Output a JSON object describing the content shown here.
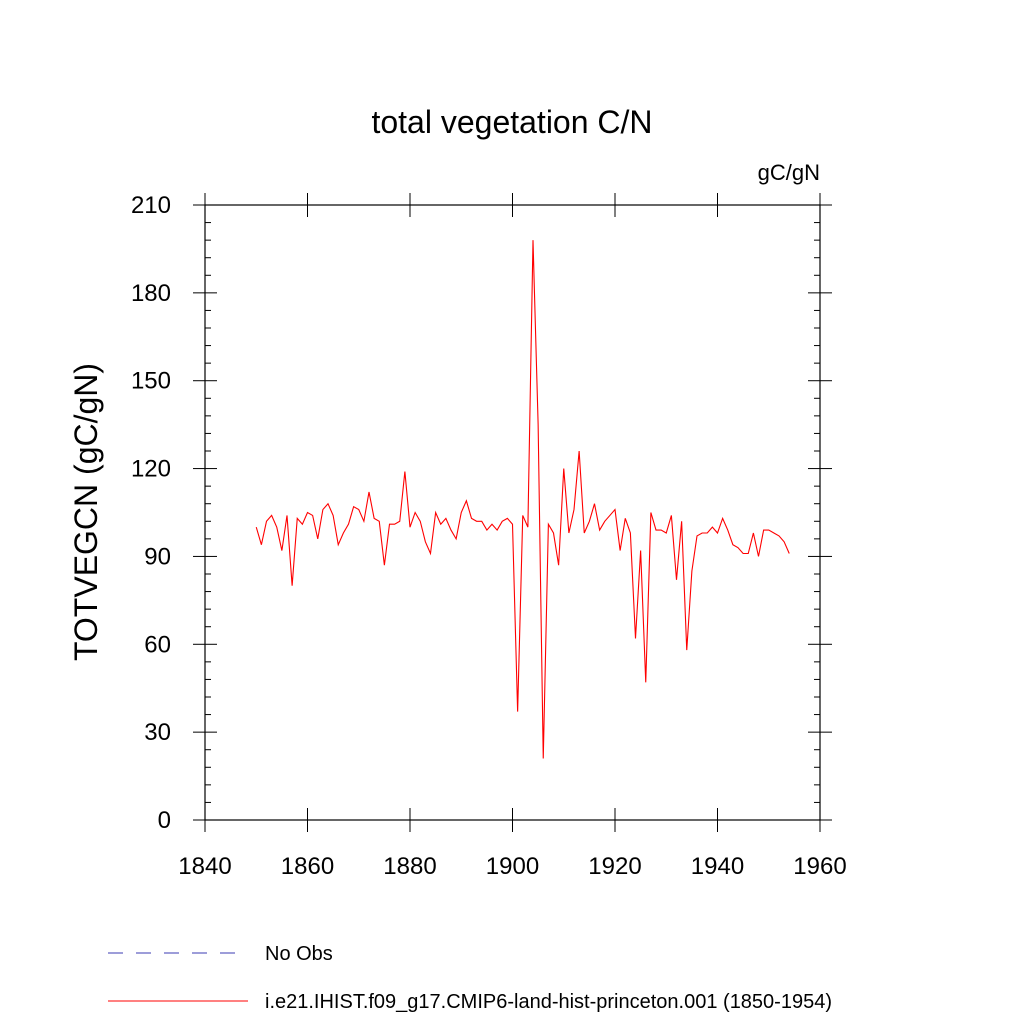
{
  "chart_data": {
    "type": "line",
    "title": "total vegetation C/N",
    "units": "gC/gN",
    "ylabel": "TOTVEGCN  (gC/gN)",
    "xlabel": "",
    "xlim": [
      1840,
      1960
    ],
    "ylim": [
      0,
      210
    ],
    "x_ticks": [
      1840,
      1860,
      1880,
      1900,
      1920,
      1940,
      1960
    ],
    "y_ticks": [
      0,
      30,
      60,
      90,
      120,
      150,
      180,
      210
    ],
    "grid": false,
    "legend_position": "bottom",
    "series": [
      {
        "name": "No Obs",
        "color": "#3b3bb3",
        "style": "dashed",
        "x": [],
        "values": []
      },
      {
        "name": "i.e21.IHIST.f09_g17.CMIP6-land-hist-princeton.001 (1850-1954)",
        "color": "#ff0000",
        "style": "solid",
        "x": [
          1850,
          1851,
          1852,
          1853,
          1854,
          1855,
          1856,
          1857,
          1858,
          1859,
          1860,
          1861,
          1862,
          1863,
          1864,
          1865,
          1866,
          1867,
          1868,
          1869,
          1870,
          1871,
          1872,
          1873,
          1874,
          1875,
          1876,
          1877,
          1878,
          1879,
          1880,
          1881,
          1882,
          1883,
          1884,
          1885,
          1886,
          1887,
          1888,
          1889,
          1890,
          1891,
          1892,
          1893,
          1894,
          1895,
          1896,
          1897,
          1898,
          1899,
          1900,
          1901,
          1902,
          1903,
          1904,
          1905,
          1906,
          1907,
          1908,
          1909,
          1910,
          1911,
          1912,
          1913,
          1914,
          1915,
          1916,
          1917,
          1918,
          1919,
          1920,
          1921,
          1922,
          1923,
          1924,
          1925,
          1926,
          1927,
          1928,
          1929,
          1930,
          1931,
          1932,
          1933,
          1934,
          1935,
          1936,
          1937,
          1938,
          1939,
          1940,
          1941,
          1942,
          1943,
          1944,
          1945,
          1946,
          1947,
          1948,
          1949,
          1950,
          1951,
          1952,
          1953,
          1954
        ],
        "values": [
          100,
          94,
          102,
          104,
          100,
          92,
          104,
          80,
          103,
          101,
          105,
          104,
          96,
          106,
          108,
          104,
          94,
          98,
          101,
          107,
          106,
          102,
          112,
          103,
          102,
          87,
          101,
          101,
          102,
          119,
          100,
          105,
          102,
          95,
          91,
          105,
          101,
          103,
          99,
          96,
          105,
          109,
          103,
          102,
          102,
          99,
          101,
          99,
          102,
          103,
          101,
          37,
          104,
          100,
          198,
          135,
          21,
          101,
          98,
          87,
          120,
          98,
          106,
          126,
          98,
          102,
          108,
          99,
          102,
          104,
          106,
          92,
          103,
          98,
          62,
          92,
          47,
          105,
          99,
          99,
          98,
          104,
          82,
          102,
          58,
          85,
          97,
          98,
          98,
          100,
          98,
          103,
          99,
          94,
          93,
          91,
          91,
          98,
          90,
          99,
          99,
          98,
          97,
          95,
          91
        ]
      }
    ]
  }
}
